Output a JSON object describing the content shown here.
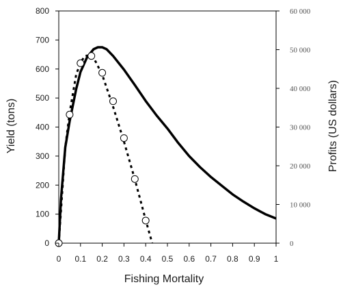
{
  "chart_data": {
    "type": "line",
    "title": "",
    "xlabel": "Fishing Mortality",
    "ylabel": "Yield (tons)",
    "y2label": "Profits (US dollars)",
    "xlim": [
      0,
      1
    ],
    "ylim": [
      0,
      800
    ],
    "y2lim": [
      0,
      60000
    ],
    "x_ticks": [
      "0",
      "0.1",
      "0.2",
      "0.3",
      "0.4",
      "0.5",
      "0.6",
      "0.7",
      "0.8",
      "0.9",
      "1"
    ],
    "y_ticks": [
      "0",
      "100",
      "200",
      "300",
      "400",
      "500",
      "600",
      "700",
      "800"
    ],
    "y2_ticks": [
      "0",
      "10 000",
      "20 000",
      "30 000",
      "40 000",
      "50 000",
      "60 000"
    ],
    "grid": false,
    "legend": "none",
    "series": [
      {
        "axis": "left",
        "style": "solid",
        "color": "#000000",
        "x": [
          0,
          0.01,
          0.03,
          0.05,
          0.08,
          0.1,
          0.13,
          0.16,
          0.18,
          0.2,
          0.22,
          0.25,
          0.3,
          0.35,
          0.4,
          0.45,
          0.5,
          0.55,
          0.6,
          0.65,
          0.7,
          0.75,
          0.8,
          0.85,
          0.9,
          0.95,
          1.0
        ],
        "y": [
          0,
          150,
          330,
          420,
          530,
          590,
          640,
          668,
          675,
          675,
          668,
          645,
          598,
          545,
          490,
          440,
          395,
          345,
          300,
          262,
          228,
          198,
          168,
          143,
          120,
          100,
          85
        ]
      },
      {
        "axis": "left",
        "style": "dotted",
        "color": "#000000",
        "x": [
          0,
          0.03,
          0.05,
          0.08,
          0.1,
          0.12,
          0.15,
          0.17,
          0.2,
          0.25,
          0.3,
          0.35,
          0.4,
          0.43
        ],
        "y": [
          0,
          330,
          450,
          580,
          622,
          645,
          648,
          625,
          580,
          470,
          350,
          220,
          80,
          0
        ]
      },
      {
        "axis": "left",
        "style": "markers",
        "marker": "open-circle",
        "color": "#000000",
        "x": [
          0,
          0.05,
          0.1,
          0.15,
          0.2,
          0.25,
          0.3,
          0.35,
          0.4
        ],
        "y": [
          0,
          443,
          620,
          645,
          587,
          489,
          362,
          221,
          78
        ]
      }
    ]
  }
}
